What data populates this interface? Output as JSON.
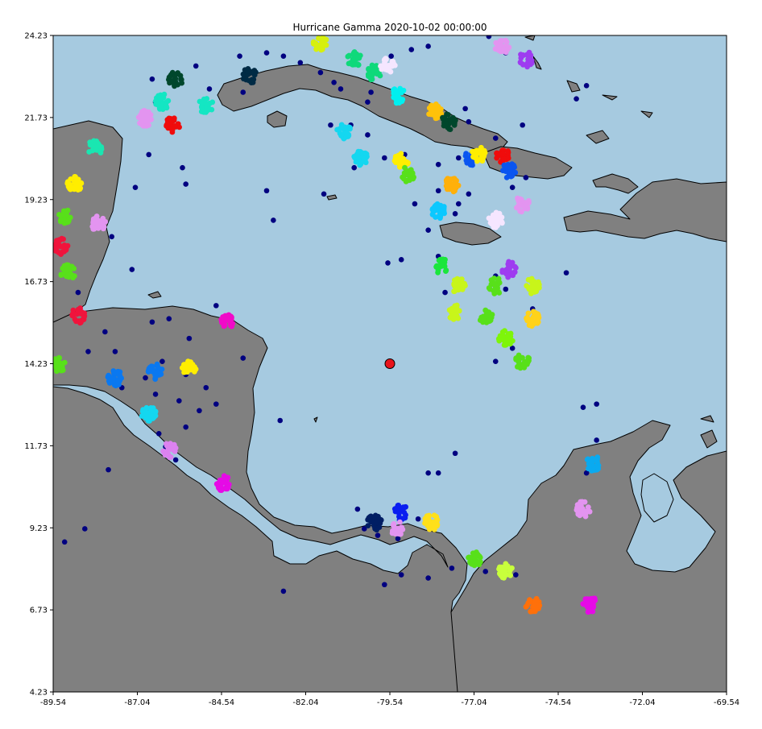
{
  "chart_data": {
    "type": "scatter",
    "title": "Hurricane Gamma 2020-10-02 00:00:00",
    "xlabel": "",
    "ylabel": "",
    "xlim": [
      -89.54,
      -69.54
    ],
    "ylim": [
      4.23,
      24.23
    ],
    "x_ticks": [
      "-89.54",
      "-87.04",
      "-84.54",
      "-82.04",
      "-79.54",
      "-77.04",
      "-74.54",
      "-72.04",
      "-69.54"
    ],
    "y_ticks": [
      "4.23",
      "6.73",
      "9.23",
      "11.73",
      "14.23",
      "16.73",
      "19.23",
      "21.73",
      "24.23"
    ],
    "grid": false,
    "colors": {
      "ocean": "#a6cae0",
      "land": "#808080",
      "coast": "#000000"
    },
    "hurricane": {
      "lon": -79.54,
      "lat": 14.23,
      "color": "#e8131b"
    },
    "sightings": [
      [
        -86.6,
        22.9
      ],
      [
        -86.5,
        22.2
      ],
      [
        -86.1,
        21.6
      ],
      [
        -85.3,
        23.3
      ],
      [
        -84.9,
        22.6
      ],
      [
        -83.9,
        22.5
      ],
      [
        -84.0,
        23.6
      ],
      [
        -83.2,
        23.7
      ],
      [
        -82.7,
        23.6
      ],
      [
        -82.2,
        23.4
      ],
      [
        -81.6,
        23.1
      ],
      [
        -81.0,
        22.6
      ],
      [
        -80.7,
        21.5
      ],
      [
        -81.3,
        21.5
      ],
      [
        -80.1,
        22.5
      ],
      [
        -79.5,
        23.6
      ],
      [
        -78.4,
        23.9
      ],
      [
        -77.3,
        22.0
      ],
      [
        -76.4,
        21.1
      ],
      [
        -75.6,
        21.5
      ],
      [
        -76.0,
        20.2
      ],
      [
        -75.9,
        19.6
      ],
      [
        -75.5,
        19.9
      ],
      [
        -77.6,
        18.8
      ],
      [
        -78.1,
        19.5
      ],
      [
        -78.8,
        19.1
      ],
      [
        -78.4,
        18.3
      ],
      [
        -79.2,
        17.4
      ],
      [
        -79.6,
        17.3
      ],
      [
        -78.1,
        17.5
      ],
      [
        -77.9,
        16.4
      ],
      [
        -76.1,
        16.5
      ],
      [
        -76.4,
        16.9
      ],
      [
        -75.3,
        15.9
      ],
      [
        -75.9,
        14.7
      ],
      [
        -76.4,
        14.3
      ],
      [
        -74.3,
        17.0
      ],
      [
        -73.7,
        22.7
      ],
      [
        -74.0,
        22.3
      ],
      [
        -78.9,
        23.8
      ],
      [
        -76.1,
        23.7
      ],
      [
        -76.6,
        24.2
      ],
      [
        -79.7,
        20.5
      ],
      [
        -80.6,
        20.2
      ],
      [
        -81.5,
        19.4
      ],
      [
        -83.2,
        19.5
      ],
      [
        -83.0,
        18.6
      ],
      [
        -85.6,
        19.7
      ],
      [
        -85.7,
        20.2
      ],
      [
        -86.7,
        20.6
      ],
      [
        -87.1,
        19.6
      ],
      [
        -87.8,
        18.1
      ],
      [
        -87.2,
        17.1
      ],
      [
        -88.8,
        16.4
      ],
      [
        -88.0,
        15.2
      ],
      [
        -87.7,
        14.6
      ],
      [
        -88.5,
        14.6
      ],
      [
        -86.6,
        15.5
      ],
      [
        -86.1,
        15.6
      ],
      [
        -85.5,
        15.0
      ],
      [
        -84.7,
        16.0
      ],
      [
        -83.9,
        14.4
      ],
      [
        -85.0,
        13.5
      ],
      [
        -85.6,
        13.9
      ],
      [
        -86.3,
        14.3
      ],
      [
        -86.8,
        13.8
      ],
      [
        -87.5,
        13.5
      ],
      [
        -86.5,
        13.3
      ],
      [
        -85.8,
        13.1
      ],
      [
        -85.2,
        12.8
      ],
      [
        -84.7,
        13.0
      ],
      [
        -85.6,
        12.3
      ],
      [
        -86.4,
        12.1
      ],
      [
        -86.2,
        11.7
      ],
      [
        -85.9,
        11.3
      ],
      [
        -87.9,
        11.0
      ],
      [
        -88.6,
        9.2
      ],
      [
        -89.2,
        8.8
      ],
      [
        -82.8,
        12.5
      ],
      [
        -82.7,
        7.3
      ],
      [
        -80.5,
        9.8
      ],
      [
        -80.3,
        9.2
      ],
      [
        -79.9,
        9.0
      ],
      [
        -79.3,
        8.9
      ],
      [
        -79.2,
        7.8
      ],
      [
        -79.7,
        7.5
      ],
      [
        -78.7,
        9.5
      ],
      [
        -78.4,
        10.9
      ],
      [
        -78.1,
        10.9
      ],
      [
        -78.4,
        7.7
      ],
      [
        -77.7,
        8.0
      ],
      [
        -76.7,
        7.9
      ],
      [
        -75.8,
        7.8
      ],
      [
        -73.7,
        10.9
      ],
      [
        -73.4,
        11.9
      ],
      [
        -73.4,
        13.0
      ],
      [
        -73.8,
        12.9
      ],
      [
        -77.6,
        11.5
      ],
      [
        -78.1,
        20.3
      ],
      [
        -77.5,
        20.5
      ],
      [
        -77.2,
        19.4
      ],
      [
        -77.5,
        19.1
      ],
      [
        -79.1,
        20.6
      ],
      [
        -80.2,
        21.2
      ],
      [
        -81.2,
        22.8
      ],
      [
        -80.2,
        22.2
      ],
      [
        -77.2,
        21.6
      ],
      [
        -78.2,
        22.0
      ]
    ],
    "clusters": [
      {
        "lon": -83.7,
        "lat": 23.0,
        "color": "#002b45"
      },
      {
        "lon": -85.9,
        "lat": 22.9,
        "color": "#00472c"
      },
      {
        "lon": -86.3,
        "lat": 22.2,
        "color": "#14e6c3"
      },
      {
        "lon": -85.0,
        "lat": 22.1,
        "color": "#14e6c3"
      },
      {
        "lon": -86.8,
        "lat": 21.7,
        "color": "#e394f0"
      },
      {
        "lon": -86.0,
        "lat": 21.5,
        "color": "#f00c0c"
      },
      {
        "lon": -88.3,
        "lat": 20.8,
        "color": "#1ae6b1"
      },
      {
        "lon": -81.6,
        "lat": 24.0,
        "color": "#d6f00e"
      },
      {
        "lon": -80.6,
        "lat": 23.5,
        "color": "#0fd97a"
      },
      {
        "lon": -80.0,
        "lat": 23.1,
        "color": "#0fd97a"
      },
      {
        "lon": -79.3,
        "lat": 22.4,
        "color": "#00f0f0"
      },
      {
        "lon": -79.6,
        "lat": 23.3,
        "color": "#f5e6ff"
      },
      {
        "lon": -80.9,
        "lat": 21.3,
        "color": "#14d7f0"
      },
      {
        "lon": -80.4,
        "lat": 20.5,
        "color": "#14d7f0"
      },
      {
        "lon": -79.2,
        "lat": 20.4,
        "color": "#ffee00"
      },
      {
        "lon": -79.0,
        "lat": 20.0,
        "color": "#58e01a"
      },
      {
        "lon": -78.2,
        "lat": 21.9,
        "color": "#ffc20a"
      },
      {
        "lon": -77.8,
        "lat": 21.6,
        "color": "#00472c"
      },
      {
        "lon": -78.1,
        "lat": 18.9,
        "color": "#0cc8ff"
      },
      {
        "lon": -77.7,
        "lat": 19.7,
        "color": "#ffb00a"
      },
      {
        "lon": -77.1,
        "lat": 20.5,
        "color": "#0a55f0"
      },
      {
        "lon": -76.9,
        "lat": 20.6,
        "color": "#ffee00"
      },
      {
        "lon": -76.2,
        "lat": 20.6,
        "color": "#f00c0c"
      },
      {
        "lon": -76.0,
        "lat": 20.1,
        "color": "#0a55f0"
      },
      {
        "lon": -76.4,
        "lat": 18.6,
        "color": "#f5e6ff"
      },
      {
        "lon": -75.6,
        "lat": 19.1,
        "color": "#e394f0"
      },
      {
        "lon": -78.0,
        "lat": 17.2,
        "color": "#1ae63c"
      },
      {
        "lon": -77.5,
        "lat": 16.6,
        "color": "#c8f51a"
      },
      {
        "lon": -77.6,
        "lat": 15.8,
        "color": "#c8f51a"
      },
      {
        "lon": -76.7,
        "lat": 15.7,
        "color": "#58e01a"
      },
      {
        "lon": -76.4,
        "lat": 16.6,
        "color": "#58e01a"
      },
      {
        "lon": -76.0,
        "lat": 17.1,
        "color": "#9e3cf0"
      },
      {
        "lon": -75.3,
        "lat": 16.6,
        "color": "#c8f51a"
      },
      {
        "lon": -76.1,
        "lat": 15.0,
        "color": "#7ef50a"
      },
      {
        "lon": -75.6,
        "lat": 14.3,
        "color": "#58e01a"
      },
      {
        "lon": -75.3,
        "lat": 15.6,
        "color": "#ffd21a"
      },
      {
        "lon": -76.2,
        "lat": 23.9,
        "color": "#e394f0"
      },
      {
        "lon": -75.5,
        "lat": 23.5,
        "color": "#9e3cf0"
      },
      {
        "lon": -89.2,
        "lat": 18.7,
        "color": "#58e01a"
      },
      {
        "lon": -88.9,
        "lat": 19.7,
        "color": "#ffee00"
      },
      {
        "lon": -89.3,
        "lat": 17.8,
        "color": "#f0143c"
      },
      {
        "lon": -89.1,
        "lat": 17.0,
        "color": "#58e01a"
      },
      {
        "lon": -88.8,
        "lat": 15.7,
        "color": "#f0143c"
      },
      {
        "lon": -89.4,
        "lat": 14.2,
        "color": "#58e01a"
      },
      {
        "lon": -88.2,
        "lat": 18.5,
        "color": "#e394f0"
      },
      {
        "lon": -87.7,
        "lat": 13.8,
        "color": "#0a78f0"
      },
      {
        "lon": -86.5,
        "lat": 14.0,
        "color": "#0a78f0"
      },
      {
        "lon": -85.5,
        "lat": 14.1,
        "color": "#ffee00"
      },
      {
        "lon": -84.4,
        "lat": 15.5,
        "color": "#f00ac8"
      },
      {
        "lon": -86.7,
        "lat": 12.7,
        "color": "#14d7f0"
      },
      {
        "lon": -86.1,
        "lat": 11.6,
        "color": "#dc82f0"
      },
      {
        "lon": -84.5,
        "lat": 10.6,
        "color": "#e60ae6"
      },
      {
        "lon": -80.0,
        "lat": 9.4,
        "color": "#001e64"
      },
      {
        "lon": -79.2,
        "lat": 9.7,
        "color": "#0a1ef0"
      },
      {
        "lon": -79.3,
        "lat": 9.2,
        "color": "#e394f0"
      },
      {
        "lon": -78.3,
        "lat": 9.4,
        "color": "#ffe01a"
      },
      {
        "lon": -77.0,
        "lat": 8.3,
        "color": "#58e01a"
      },
      {
        "lon": -76.1,
        "lat": 7.9,
        "color": "#c8ff3c"
      },
      {
        "lon": -75.3,
        "lat": 6.9,
        "color": "#ff700a"
      },
      {
        "lon": -73.6,
        "lat": 6.9,
        "color": "#e60ae6"
      },
      {
        "lon": -73.5,
        "lat": 11.2,
        "color": "#0aaaf0"
      },
      {
        "lon": -73.8,
        "lat": 9.8,
        "color": "#e394f0"
      }
    ]
  }
}
